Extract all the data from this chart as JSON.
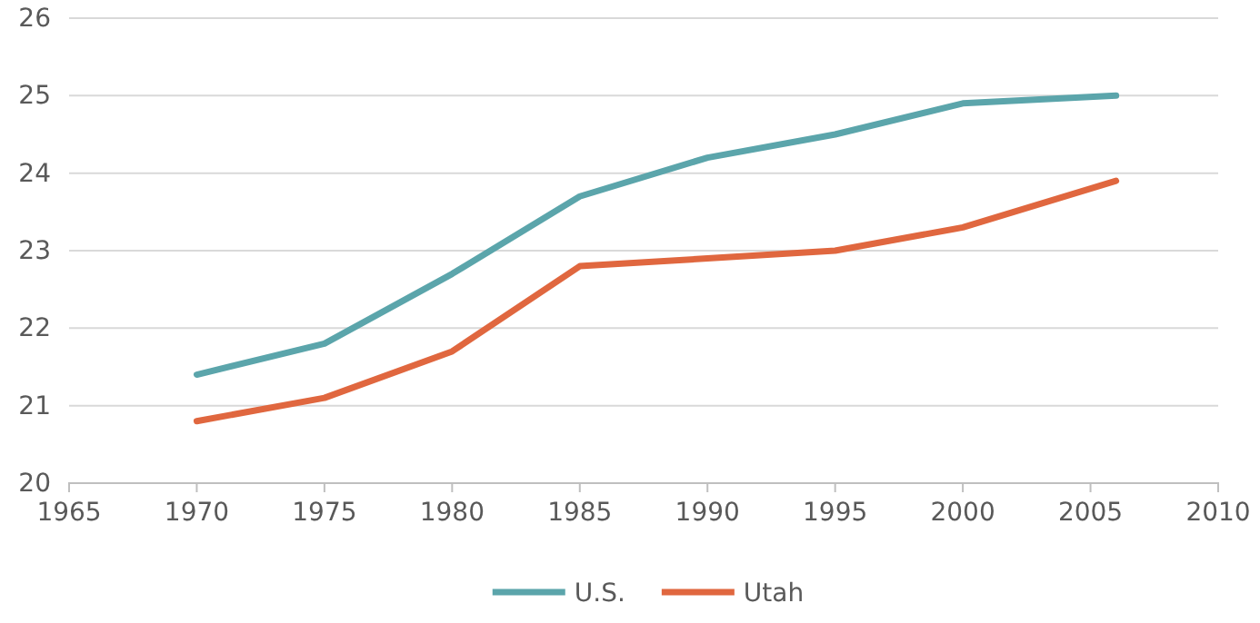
{
  "chart_data": {
    "type": "line",
    "x": [
      1970,
      1975,
      1980,
      1985,
      1990,
      1995,
      2000,
      2006
    ],
    "series": [
      {
        "name": "U.S.",
        "color": "#5ba5ab",
        "values": [
          21.4,
          21.8,
          22.7,
          23.7,
          24.2,
          24.5,
          24.9,
          25.0
        ]
      },
      {
        "name": "Utah",
        "color": "#e0673f",
        "values": [
          20.8,
          21.1,
          21.7,
          22.8,
          22.9,
          23.0,
          23.3,
          23.9
        ]
      }
    ],
    "xlim": [
      1965,
      2010
    ],
    "xticks": [
      1965,
      1970,
      1975,
      1980,
      1985,
      1990,
      1995,
      2000,
      2005,
      2010
    ],
    "ylim": [
      20,
      26
    ],
    "yticks": [
      20,
      21,
      22,
      23,
      24,
      25,
      26
    ],
    "grid": "y",
    "legend": "bottom",
    "marker": "none",
    "line_style": "solid"
  }
}
